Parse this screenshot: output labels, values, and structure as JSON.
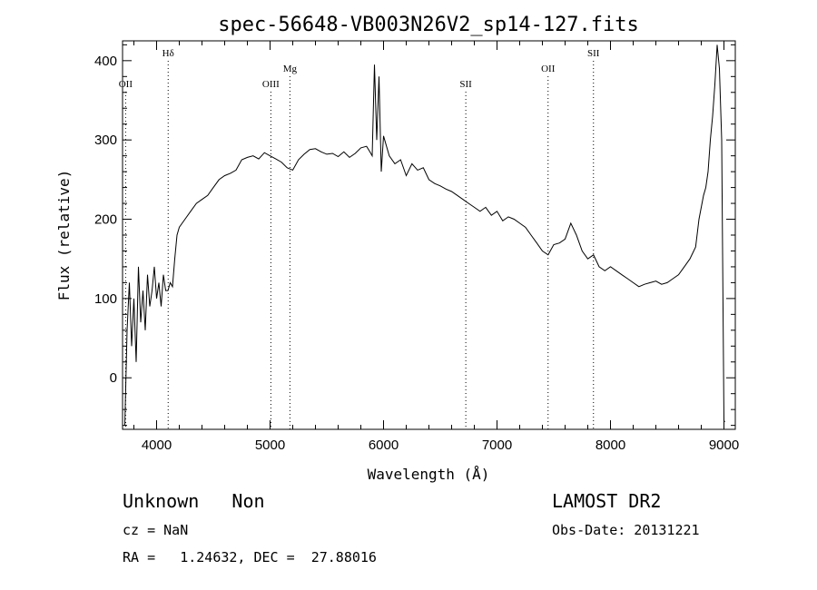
{
  "chart_data": {
    "type": "line",
    "title": "spec-56648-VB003N26V2_sp14-127.fits",
    "xlabel": "Wavelength (Å)",
    "ylabel": "Flux (relative)",
    "xlim": [
      3700,
      9100
    ],
    "ylim": [
      -65,
      425
    ],
    "x_ticks": [
      4000,
      5000,
      6000,
      7000,
      8000,
      9000
    ],
    "y_ticks": [
      0,
      100,
      200,
      300,
      400
    ],
    "grid": false,
    "series": [
      {
        "x": [
          3720,
          3740,
          3760,
          3780,
          3800,
          3820,
          3840,
          3860,
          3880,
          3900,
          3920,
          3940,
          3960,
          3980,
          4000,
          4020,
          4040,
          4060,
          4080,
          4100,
          4120,
          4140,
          4160,
          4180,
          4200,
          4250,
          4300,
          4350,
          4400,
          4450,
          4500,
          4550,
          4600,
          4650,
          4700,
          4750,
          4800,
          4850,
          4900,
          4950,
          5000,
          5050,
          5100,
          5150,
          5200,
          5250,
          5300,
          5350,
          5400,
          5450,
          5500,
          5550,
          5600,
          5650,
          5700,
          5750,
          5800,
          5850,
          5880,
          5900,
          5920,
          5940,
          5960,
          5980,
          6000,
          6050,
          6100,
          6150,
          6200,
          6250,
          6300,
          6350,
          6400,
          6450,
          6500,
          6550,
          6600,
          6650,
          6700,
          6750,
          6800,
          6850,
          6900,
          6950,
          7000,
          7050,
          7100,
          7150,
          7200,
          7250,
          7300,
          7350,
          7400,
          7450,
          7500,
          7550,
          7600,
          7650,
          7700,
          7750,
          7800,
          7850,
          7900,
          7950,
          8000,
          8050,
          8100,
          8150,
          8200,
          8250,
          8300,
          8350,
          8400,
          8450,
          8500,
          8550,
          8600,
          8650,
          8700,
          8750,
          8780,
          8800,
          8820,
          8840,
          8860,
          8880,
          8900,
          8920,
          8940,
          8960,
          8980,
          9000,
          9010
        ],
        "values": [
          -60,
          60,
          120,
          40,
          100,
          20,
          140,
          70,
          110,
          60,
          130,
          90,
          110,
          140,
          100,
          120,
          90,
          130,
          110,
          110,
          120,
          115,
          150,
          180,
          190,
          200,
          210,
          220,
          225,
          230,
          240,
          250,
          255,
          258,
          262,
          275,
          278,
          280,
          276,
          284,
          280,
          276,
          272,
          265,
          262,
          275,
          282,
          288,
          289,
          285,
          282,
          283,
          279,
          285,
          278,
          283,
          290,
          292,
          285,
          280,
          395,
          300,
          380,
          260,
          305,
          280,
          270,
          275,
          255,
          270,
          262,
          265,
          250,
          245,
          242,
          238,
          235,
          230,
          225,
          220,
          215,
          210,
          215,
          205,
          210,
          198,
          203,
          200,
          195,
          190,
          180,
          170,
          160,
          155,
          168,
          170,
          175,
          195,
          180,
          160,
          150,
          155,
          140,
          135,
          140,
          135,
          130,
          125,
          120,
          115,
          118,
          120,
          122,
          118,
          120,
          125,
          130,
          140,
          150,
          165,
          200,
          215,
          230,
          240,
          260,
          300,
          330,
          370,
          420,
          390,
          300,
          -55,
          -55
        ]
      }
    ],
    "lines": [
      {
        "label": "OII",
        "x": 3727,
        "level": 2
      },
      {
        "label": "Hδ",
        "x": 4102,
        "level": 0
      },
      {
        "label": "OIII",
        "x": 5007,
        "level": 2
      },
      {
        "label": "Mg",
        "x": 5175,
        "level": 1
      },
      {
        "label": "SII",
        "x": 6725,
        "level": 2
      },
      {
        "label": "OII",
        "x": 7450,
        "level": 1
      },
      {
        "label": "SII",
        "x": 7850,
        "level": 0
      }
    ]
  },
  "info": {
    "class_line": "Unknown   Non",
    "cz_line": "cz = NaN",
    "radec_line": "RA =   1.24632, DEC =  27.88016",
    "survey": "LAMOST DR2",
    "obsdate_line": "Obs-Date: 20131221"
  }
}
